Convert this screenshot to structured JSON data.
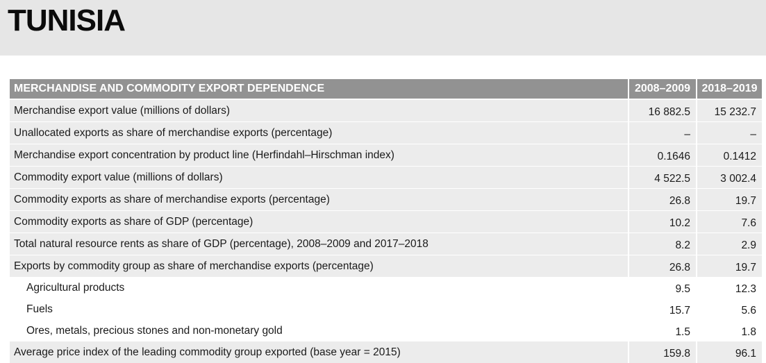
{
  "country": "TUNISIA",
  "table": {
    "heading": "MERCHANDISE AND COMMODITY EXPORT DEPENDENCE",
    "col1": "2008–2009",
    "col2": "2018–2019",
    "rows": [
      {
        "label": "Merchandise export value (millions of dollars)",
        "v1": "16 882.5",
        "v2": "15 232.7"
      },
      {
        "label": "Unallocated exports as share of merchandise exports (percentage)",
        "v1": "–",
        "v2": "–"
      },
      {
        "label": "Merchandise export concentration by product line (Herfindahl–Hirschman index)",
        "v1": "0.1646",
        "v2": "0.1412"
      },
      {
        "label": "Commodity export value (millions of dollars)",
        "v1": "4 522.5",
        "v2": "3 002.4"
      },
      {
        "label": "Commodity exports as share of merchandise exports (percentage)",
        "v1": "26.8",
        "v2": "19.7"
      },
      {
        "label": "Commodity exports as share of GDP (percentage)",
        "v1": "10.2",
        "v2": "7.6"
      },
      {
        "label": "Total natural resource rents as share of GDP (percentage), 2008–2009 and 2017–2018",
        "v1": "8.2",
        "v2": "2.9"
      },
      {
        "label": "Exports by commodity group as share of merchandise exports (percentage)",
        "v1": "26.8",
        "v2": "19.7"
      },
      {
        "label": "Agricultural products",
        "v1": "9.5",
        "v2": "12.3"
      },
      {
        "label": "Fuels",
        "v1": "15.7",
        "v2": "5.6"
      },
      {
        "label": "Ores, metals, precious stones and non-monetary gold",
        "v1": "1.5",
        "v2": "1.8"
      },
      {
        "label": "Average price index of the leading commodity group exported (base year = 2015)",
        "v1": "159.8",
        "v2": "96.1"
      }
    ]
  }
}
